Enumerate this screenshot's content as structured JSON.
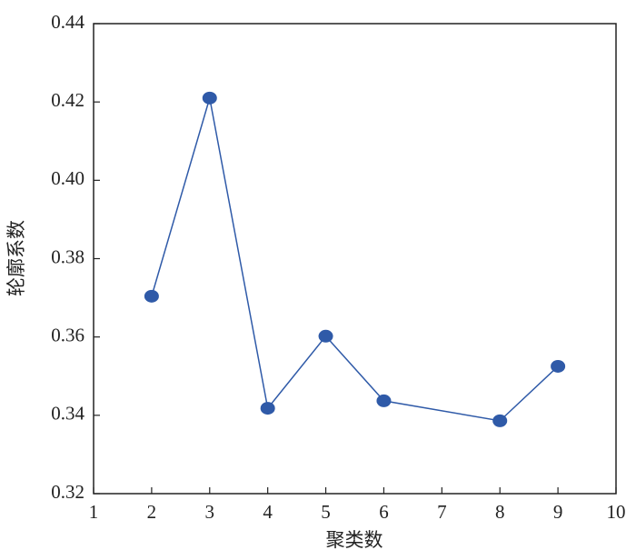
{
  "chart_data": {
    "type": "line",
    "x_label": "聚类数",
    "y_label": "轮廓系数",
    "x": [
      2,
      3,
      4,
      5,
      6,
      8,
      9
    ],
    "series": [
      {
        "color": "#2f5aa8",
        "values": [
          0.3704,
          0.421,
          0.3418,
          0.3602,
          0.3437,
          0.3386,
          0.3525
        ]
      }
    ],
    "xlim": [
      1,
      10
    ],
    "xticks": [
      1,
      2,
      3,
      4,
      5,
      6,
      7,
      8,
      9,
      10
    ],
    "ylim": [
      0.32,
      0.44
    ],
    "yticks": [
      0.32,
      0.34,
      0.36,
      0.38,
      {
        "value": 0.4,
        "label": "0.40"
      },
      0.42,
      0.44
    ],
    "grid": false
  }
}
